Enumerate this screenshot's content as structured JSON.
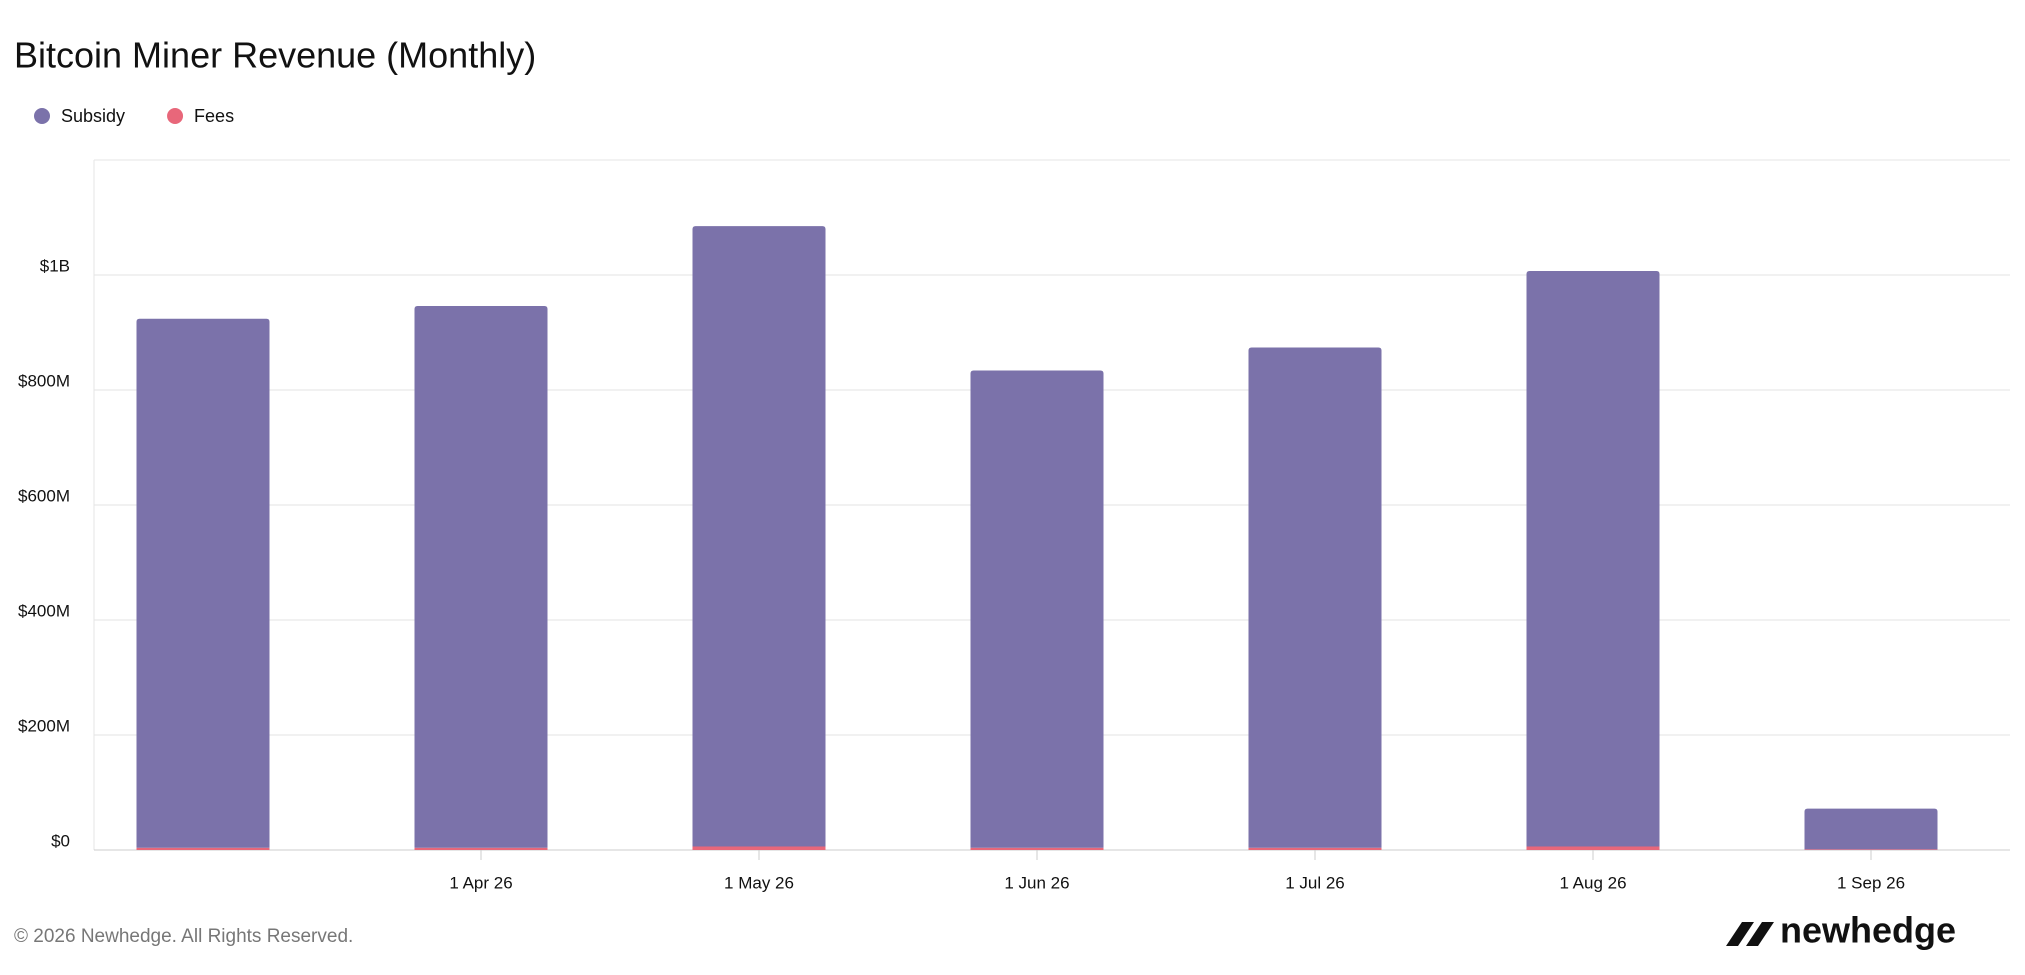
{
  "chart_data": {
    "type": "bar",
    "stacked": true,
    "title": "Bitcoin Miner Revenue (Monthly)",
    "categories": [
      null,
      "1 Apr 26",
      "1 May 26",
      "1 Jun 26",
      "1 Jul 26",
      "1 Aug 26",
      "1 Sep 26"
    ],
    "series": [
      {
        "name": "Fees",
        "color": "#e8677a",
        "values": [
          4000000,
          4000000,
          6000000,
          4000000,
          4000000,
          6000000,
          1000000
        ]
      },
      {
        "name": "Subsidy",
        "color": "#7b72aa",
        "values": [
          920000000,
          942000000,
          1079000000,
          830000000,
          870000000,
          1001000000,
          71000000
        ]
      }
    ],
    "legend_order": [
      "Subsidy",
      "Fees"
    ],
    "ylim": [
      0,
      1200000000
    ],
    "yticks": [
      {
        "value": 0,
        "label": "$0"
      },
      {
        "value": 200000000,
        "label": "$200M"
      },
      {
        "value": 400000000,
        "label": "$400M"
      },
      {
        "value": 600000000,
        "label": "$600M"
      },
      {
        "value": 800000000,
        "label": "$800M"
      },
      {
        "value": 1000000000,
        "label": "$1B"
      }
    ],
    "grid": true,
    "footer": "© 2026 Newhedge. All Rights Reserved.",
    "brand": "newhedge"
  }
}
